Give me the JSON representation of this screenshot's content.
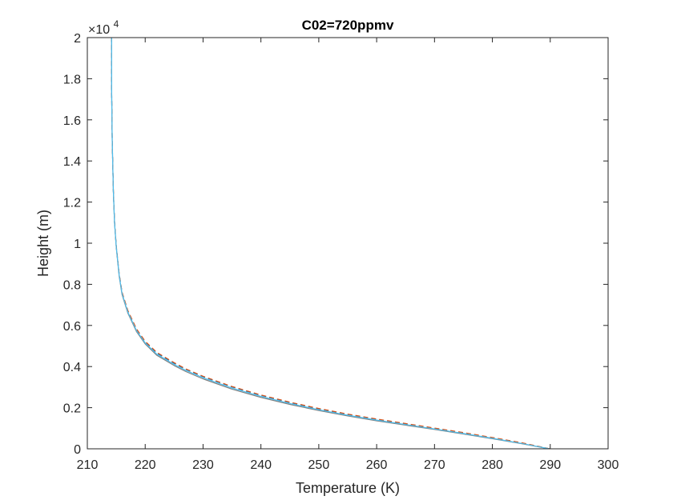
{
  "chart_data": {
    "type": "line",
    "title": "C02=720ppmv",
    "xlabel": "Temperature (K)",
    "ylabel": "Height (m)",
    "xlim": [
      210,
      300
    ],
    "ylim": [
      0,
      20000
    ],
    "xticks": [
      "210",
      "220",
      "230",
      "240",
      "250",
      "260",
      "270",
      "280",
      "290",
      "300"
    ],
    "yticks": [
      "0",
      "0.2",
      "0.4",
      "0.6",
      "0.8",
      "1",
      "1.2",
      "1.4",
      "1.6",
      "1.8",
      "2"
    ],
    "y_exponent": {
      "base": "×10",
      "power": "4"
    },
    "grid": false,
    "legend": "none",
    "colors": {
      "axis": "#262626",
      "text": "#262626"
    },
    "series": [
      {
        "color": "#808080",
        "style": "solid",
        "x": [
          289.8,
          287.5,
          285,
          280,
          275,
          270,
          265,
          260,
          255,
          250,
          245,
          240,
          235,
          230,
          227,
          225,
          222,
          220,
          218.5,
          217,
          216,
          215.5,
          215,
          214.7,
          214.5,
          214.3,
          214.2,
          214.2
        ],
        "y": [
          0,
          120,
          250,
          490,
          720,
          940,
          1150,
          1360,
          1600,
          1860,
          2160,
          2500,
          2900,
          3400,
          3760,
          4050,
          4550,
          5100,
          5700,
          6600,
          7500,
          8400,
          9800,
          11000,
          12500,
          15000,
          17500,
          20000
        ]
      },
      {
        "color": "#0072BD",
        "style": "dashed",
        "x": [
          289.9,
          287.5,
          285,
          280,
          275,
          270,
          265,
          260,
          255,
          250,
          245,
          240,
          235,
          230,
          227,
          225,
          222,
          220,
          218.5,
          217,
          216,
          215.5,
          215,
          214.7,
          214.5,
          214.3,
          214.2,
          214.2
        ],
        "y": [
          0,
          140,
          280,
          530,
          770,
          990,
          1210,
          1430,
          1670,
          1940,
          2250,
          2600,
          3010,
          3510,
          3870,
          4160,
          4660,
          5200,
          5800,
          6700,
          7600,
          8500,
          9850,
          11050,
          12550,
          15000,
          17500,
          20000
        ]
      },
      {
        "color": "#D95319",
        "style": "dashed",
        "x": [
          289.9,
          287.5,
          285,
          280,
          275,
          270,
          265,
          260,
          255,
          250,
          245,
          240,
          235,
          230,
          227,
          225,
          222,
          220,
          218.5,
          217,
          216,
          215.5,
          215,
          214.7,
          214.5,
          214.3,
          214.2,
          214.2
        ],
        "y": [
          0,
          150,
          300,
          550,
          790,
          1010,
          1230,
          1450,
          1690,
          1960,
          2270,
          2620,
          3030,
          3530,
          3890,
          4190,
          4690,
          5230,
          5830,
          6730,
          7620,
          8520,
          9870,
          11070,
          12560,
          15000,
          17500,
          20000
        ]
      },
      {
        "color": "#4DBEEE",
        "style": "solid",
        "x": [
          289.8,
          287.5,
          285,
          280,
          275,
          270,
          265,
          260,
          255,
          250,
          245,
          240,
          235,
          230,
          227,
          225,
          222,
          220,
          218.5,
          217,
          216,
          215.5,
          215,
          214.7,
          214.5,
          214.3,
          214.2,
          214.2
        ],
        "y": [
          0,
          130,
          265,
          510,
          745,
          965,
          1180,
          1395,
          1635,
          1900,
          2205,
          2550,
          2955,
          3455,
          3815,
          4105,
          4605,
          5150,
          5750,
          6650,
          7550,
          8450,
          9820,
          11020,
          12520,
          15000,
          17500,
          20000
        ]
      }
    ]
  }
}
